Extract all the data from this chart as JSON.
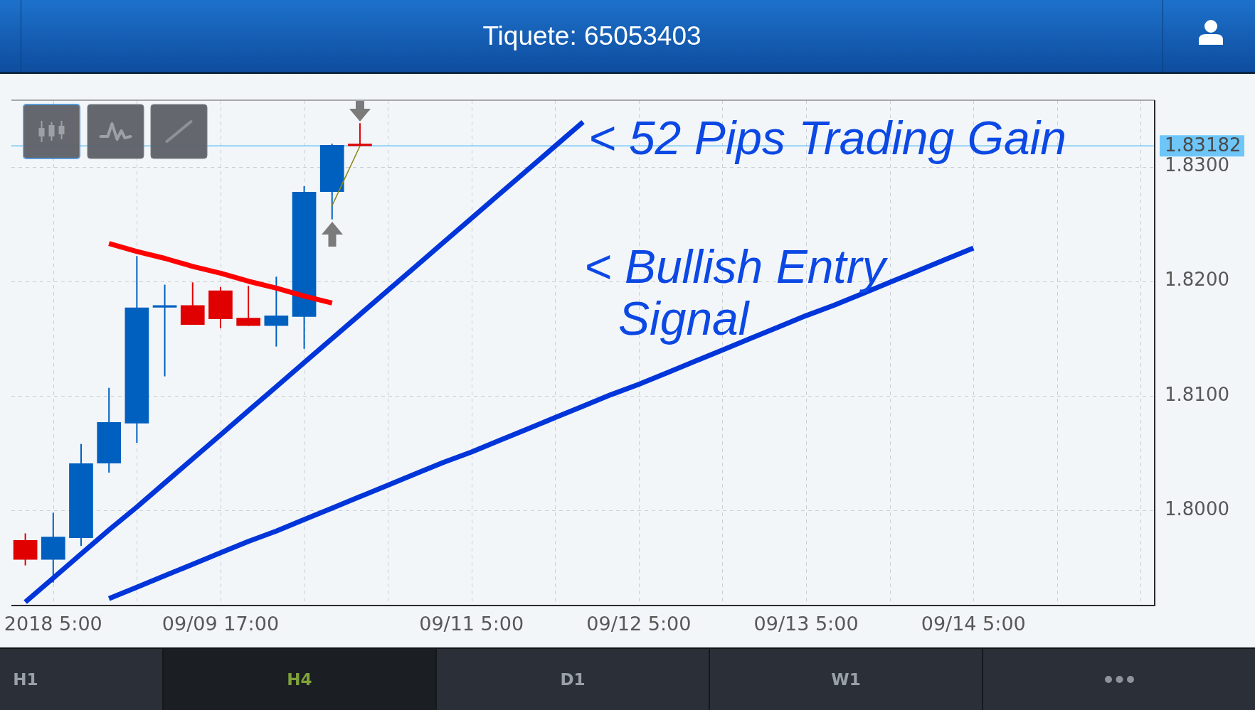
{
  "chart_data": {
    "type": "candlestick",
    "title": "Tiquete: 65053403",
    "categories": [
      null,
      "2018 5:00",
      null,
      null,
      null,
      null,
      null,
      "09/09 17:00",
      null,
      null,
      null,
      null,
      null,
      null,
      null,
      null,
      "09/11 5:00",
      null,
      null,
      null,
      null,
      null,
      "09/12 5:00",
      null,
      null,
      null,
      null,
      null,
      "09/13 5:00",
      null,
      null,
      null,
      null,
      null,
      "09/14 5:00",
      null,
      null,
      null,
      null,
      null,
      null
    ],
    "ohlc": [
      [
        1.7974,
        1.798,
        1.7952,
        1.7957
      ],
      [
        1.7957,
        1.7998,
        1.7937,
        1.7977
      ],
      [
        1.7976,
        1.8058,
        1.7969,
        1.8041
      ],
      [
        1.8041,
        1.8107,
        1.8033,
        1.8077
      ],
      [
        1.8076,
        1.8222,
        1.8059,
        1.8177
      ],
      [
        1.8177,
        1.8197,
        1.8117,
        1.8179
      ],
      [
        1.8179,
        1.8199,
        1.8162,
        1.8162
      ],
      [
        1.8192,
        1.8195,
        1.8159,
        1.8167
      ],
      [
        1.8168,
        1.8196,
        1.8161,
        1.8161
      ],
      [
        1.8161,
        1.8204,
        1.8143,
        1.817
      ],
      [
        1.8169,
        1.8283,
        1.8141,
        1.8278
      ],
      [
        1.8278,
        1.832,
        1.8254,
        1.8319
      ],
      [
        1.832,
        1.8338,
        1.8318,
        1.8318
      ],
      null,
      null,
      null,
      null,
      null,
      null,
      null,
      null,
      null,
      null,
      null,
      null,
      null,
      null,
      null,
      null,
      null,
      null,
      null,
      null,
      null,
      null,
      null,
      null,
      null,
      null,
      null,
      null
    ],
    "colors": [
      "#e00000",
      "#0060c0",
      "#0060c0",
      "#0060c0",
      "#0060c0",
      "#0060c0",
      "#e00000",
      "#e00000",
      "#e00000",
      "#0060c0",
      "#0060c0",
      "#0060c0",
      "#e00000",
      null,
      null,
      null,
      null,
      null,
      null,
      null,
      null,
      null,
      null,
      null,
      null,
      null,
      null,
      null,
      null,
      null,
      null,
      null,
      null,
      null,
      null,
      null,
      null,
      null,
      null,
      null,
      null
    ],
    "series": [
      {
        "type": "line",
        "color": "#0035da",
        "values": [
          1.792,
          1.7941,
          1.7962,
          1.7983,
          1.8003,
          1.8024,
          1.8045,
          1.8066,
          1.8087,
          1.8108,
          1.8129,
          1.815,
          1.8171,
          1.8192,
          1.8213,
          1.8234,
          1.8255,
          1.8276,
          1.8297,
          1.8318,
          1.8339,
          null,
          null,
          null,
          null,
          null,
          null,
          null,
          null,
          null,
          null,
          null,
          null,
          null,
          null,
          null,
          null,
          null,
          null,
          null,
          null
        ]
      },
      {
        "type": "line",
        "color": "#0035da",
        "values": [
          null,
          null,
          null,
          1.7923,
          1.7933,
          1.7943,
          1.7953,
          1.7963,
          1.7973,
          1.7982,
          1.7992,
          1.8002,
          1.8012,
          1.8022,
          1.8032,
          1.8042,
          1.8051,
          1.8061,
          1.8071,
          1.8081,
          1.8091,
          1.8101,
          1.811,
          1.812,
          1.813,
          1.814,
          1.815,
          1.816,
          1.817,
          1.8179,
          1.8189,
          1.8199,
          1.8209,
          1.8219,
          1.8229,
          null,
          null,
          null,
          null,
          null,
          null
        ]
      },
      {
        "type": "line",
        "color": "#ff0000",
        "values": [
          null,
          null,
          null,
          1.8233,
          1.8226,
          1.822,
          1.8213,
          1.8207,
          1.82,
          1.8194,
          1.8187,
          1.8181,
          null,
          null,
          null,
          null,
          null,
          null,
          null,
          null,
          null,
          null,
          null,
          null,
          null,
          null,
          null,
          null,
          null,
          null,
          null,
          null,
          null,
          null,
          null,
          null,
          null,
          null,
          null,
          null,
          null
        ]
      },
      {
        "type": "line",
        "color": "#8a8a1c",
        "values": [
          null,
          null,
          null,
          null,
          null,
          null,
          null,
          null,
          null,
          null,
          null,
          1.8266,
          1.8318,
          null,
          null,
          null,
          null,
          null,
          null,
          null,
          null,
          null,
          null,
          null,
          null,
          null,
          null,
          null,
          null,
          null,
          null,
          null,
          null,
          null,
          null,
          null,
          null,
          null,
          null,
          null,
          null
        ]
      }
    ],
    "ylim": [
      1.7917,
      1.8358
    ],
    "yticks": [
      {
        "value": 1.8,
        "label": "1.8000"
      },
      {
        "value": 1.81,
        "label": "1.8100"
      },
      {
        "value": 1.82,
        "label": "1.8200"
      },
      {
        "value": 1.83,
        "label": "1.8300"
      }
    ],
    "ref_lines": [
      {
        "axis": "y",
        "value": 1.83182,
        "label": "1.83182",
        "color": "#6ec6f8"
      }
    ],
    "annotations": [
      "< 52 Pips Trading Gain",
      "< Bullish Entry\nSignal",
      "H1",
      "H4",
      "D1",
      "W1"
    ],
    "grid": true,
    "marker": "none"
  }
}
